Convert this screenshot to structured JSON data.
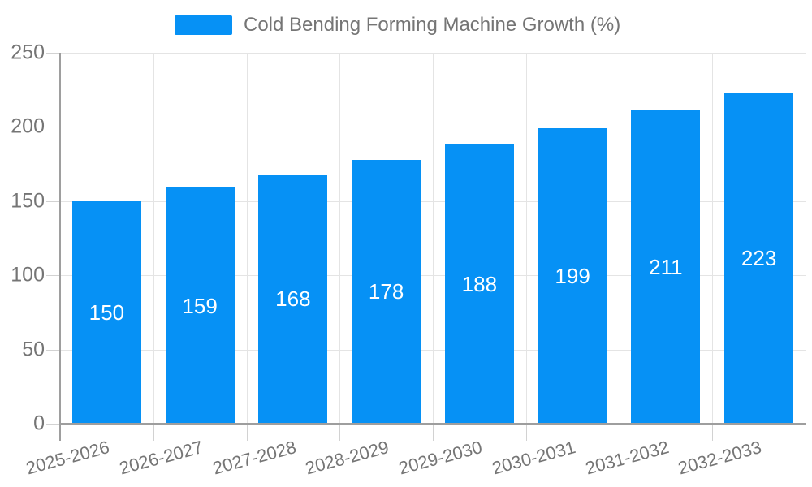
{
  "chart_data": {
    "type": "bar",
    "title": "Cold Bending Forming Machine Growth (%)",
    "legend": {
      "position": "top",
      "entries": [
        "Cold Bending Forming Machine Growth (%)"
      ]
    },
    "categories": [
      "2025-2026",
      "2026-2027",
      "2027-2028",
      "2028-2029",
      "2029-2030",
      "2030-2031",
      "2031-2032",
      "2032-2033"
    ],
    "values": [
      150,
      159,
      168,
      178,
      188,
      199,
      211,
      223
    ],
    "xlabel": "",
    "ylabel": "",
    "ylim": [
      0,
      250
    ],
    "yticks": [
      0,
      50,
      100,
      150,
      200,
      250
    ],
    "grid": true,
    "x_label_rotation_deg": -15,
    "value_label_position": "inside-center",
    "colors": {
      "bar": "#0691f5",
      "value_label": "#ffffff",
      "axis_text": "#757575",
      "gridline": "#e4e4e4",
      "axis_line": "#9e9e9e"
    }
  }
}
